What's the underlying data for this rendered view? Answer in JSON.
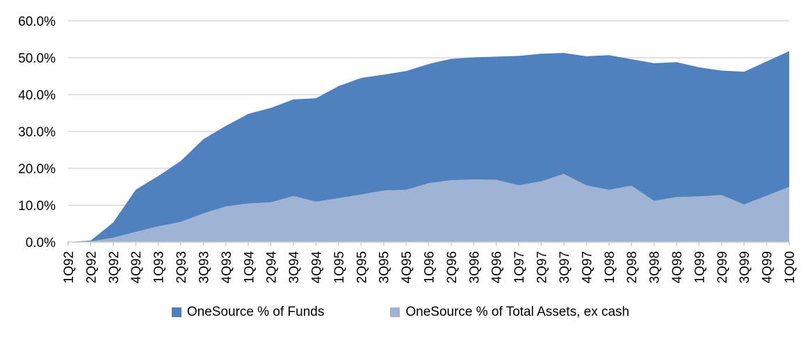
{
  "chart_data": {
    "type": "area",
    "title": "",
    "xlabel": "",
    "ylabel": "",
    "ylim": [
      0,
      60
    ],
    "grid": true,
    "legend_position": "bottom",
    "gridline_color": "#D9D9D9",
    "axis_color": "#C9C9C9",
    "text_color": "#000000",
    "y_ticks": [
      0,
      10,
      20,
      30,
      40,
      50,
      60
    ],
    "y_tick_labels": [
      "0.0%",
      "10.0%",
      "20.0%",
      "30.0%",
      "40.0%",
      "50.0%",
      "60.0%"
    ],
    "categories": [
      "1Q92",
      "2Q92",
      "3Q92",
      "4Q92",
      "1Q93",
      "2Q93",
      "3Q93",
      "4Q93",
      "1Q94",
      "2Q94",
      "3Q94",
      "4Q94",
      "1Q95",
      "2Q95",
      "3Q95",
      "4Q95",
      "1Q96",
      "2Q96",
      "3Q96",
      "4Q96",
      "1Q97",
      "2Q97",
      "3Q97",
      "4Q97",
      "1Q98",
      "2Q98",
      "3Q98",
      "4Q98",
      "1Q99",
      "2Q99",
      "3Q99",
      "4Q99",
      "1Q00"
    ],
    "series": [
      {
        "name": "OneSource % of Funds",
        "color": "#4E81BD",
        "values": [
          0.0,
          0.4,
          5.3,
          14.2,
          17.9,
          22.0,
          27.9,
          31.5,
          34.8,
          36.4,
          38.7,
          39.0,
          42.3,
          44.5,
          45.4,
          46.4,
          48.3,
          49.7,
          50.1,
          50.3,
          50.5,
          51.1,
          51.3,
          50.4,
          50.7,
          49.6,
          48.5,
          48.8,
          47.4,
          46.5,
          46.2,
          49.0,
          51.8
        ]
      },
      {
        "name": "OneSource % of Total Assets, ex cash",
        "color": "#9FB4D4",
        "values": [
          0.0,
          0.2,
          1.2,
          2.8,
          4.3,
          5.5,
          7.8,
          9.7,
          10.5,
          10.8,
          12.5,
          11.0,
          11.9,
          12.9,
          14.0,
          14.2,
          16.0,
          16.8,
          17.0,
          16.9,
          15.4,
          16.5,
          18.5,
          15.4,
          14.2,
          15.3,
          11.2,
          12.2,
          12.4,
          12.8,
          10.2,
          12.6,
          15.0
        ]
      }
    ]
  }
}
